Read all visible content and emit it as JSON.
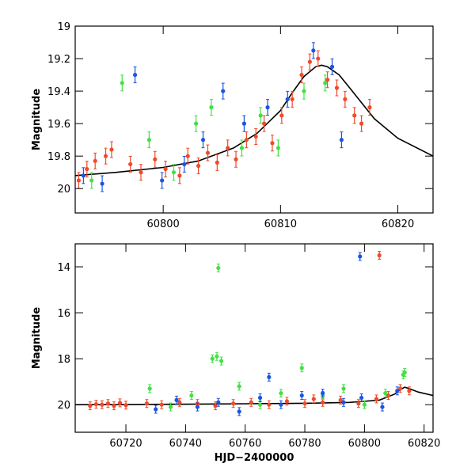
{
  "chart_data": [
    {
      "type": "scatter",
      "title": "",
      "xlabel": "",
      "ylabel": "Magnitude",
      "xlim": [
        60792.5,
        60823
      ],
      "ylim": [
        20.15,
        19.0
      ],
      "y_inverted": true,
      "grid": false,
      "x_ticks": [
        "60800",
        "60810",
        "60820"
      ],
      "y_ticks": [
        "19",
        "19.2",
        "19.4",
        "19.6",
        "19.8",
        "20"
      ],
      "colors": {
        "red": "#f04a2a",
        "green": "#44e044",
        "blue": "#1a55e0",
        "model": "#000000"
      },
      "model_curve": {
        "x": [
          60792.5,
          60796,
          60800,
          60803,
          60806,
          60808,
          60810,
          60811,
          60812,
          60813,
          60813.5,
          60814,
          60815,
          60816,
          60817,
          60818,
          60820,
          60823
        ],
        "y": [
          19.92,
          19.9,
          19.87,
          19.83,
          19.75,
          19.66,
          19.52,
          19.41,
          19.31,
          19.25,
          19.24,
          19.25,
          19.3,
          19.39,
          19.48,
          19.57,
          19.69,
          19.8
        ]
      },
      "series": [
        {
          "color": "red",
          "x": [
            60792.8,
            60793.5,
            60794.2,
            60795.1,
            60795.6,
            60797.2,
            60798.1,
            60799.3,
            60800.2,
            60801.4,
            60802.1,
            60803.0,
            60803.8,
            60804.6,
            60805.5,
            60806.2,
            60807.1,
            60807.9,
            60808.6,
            60809.3,
            60810.1,
            60811.0,
            60811.8,
            60812.5,
            60813.2,
            60814.0,
            60814.8,
            60815.5,
            60816.3,
            60816.9,
            60817.6
          ],
          "y": [
            19.95,
            19.88,
            19.83,
            19.8,
            19.76,
            19.85,
            19.9,
            19.82,
            19.88,
            19.92,
            19.8,
            19.86,
            19.78,
            19.84,
            19.75,
            19.82,
            19.7,
            19.68,
            19.6,
            19.72,
            19.55,
            19.45,
            19.3,
            19.22,
            19.2,
            19.33,
            19.38,
            19.45,
            19.55,
            19.6,
            19.5
          ]
        },
        {
          "color": "green",
          "x": [
            60793.9,
            60796.5,
            60798.8,
            60800.9,
            60802.8,
            60804.1,
            60806.7,
            60808.3,
            60809.8,
            60812.0,
            60813.8
          ],
          "y": [
            19.95,
            19.35,
            19.7,
            19.9,
            19.6,
            19.5,
            19.75,
            19.55,
            19.75,
            19.4,
            19.35
          ]
        },
        {
          "color": "blue",
          "x": [
            60793.2,
            60794.8,
            60797.6,
            60799.9,
            60801.8,
            60803.4,
            60805.1,
            60806.9,
            60808.9,
            60810.6,
            60812.8,
            60814.4,
            60815.2
          ],
          "y": [
            19.92,
            19.97,
            19.3,
            19.95,
            19.85,
            19.7,
            19.4,
            19.6,
            19.5,
            19.45,
            19.15,
            19.25,
            19.7
          ]
        }
      ]
    },
    {
      "type": "scatter",
      "title": "",
      "xlabel": "HJD−2400000",
      "ylabel": "Magnitude",
      "xlim": [
        60703,
        60823
      ],
      "ylim": [
        21.2,
        13.0
      ],
      "y_inverted": true,
      "grid": false,
      "x_ticks": [
        "60720",
        "60740",
        "60760",
        "60780",
        "60800",
        "60820"
      ],
      "y_ticks": [
        "14",
        "16",
        "18",
        "20"
      ],
      "colors": {
        "red": "#f04a2a",
        "green": "#44e044",
        "blue": "#1a55e0",
        "model": "#000000"
      },
      "model_curve": {
        "x": [
          60703,
          60720,
          60740,
          60760,
          60780,
          60795,
          60805,
          60810,
          60812,
          60813.5,
          60815,
          60818,
          60823
        ],
        "y": [
          20.0,
          19.99,
          19.98,
          19.96,
          19.94,
          19.9,
          19.8,
          19.55,
          19.35,
          19.24,
          19.3,
          19.45,
          19.6
        ]
      },
      "series": [
        {
          "color": "red",
          "x": [
            60708,
            60710,
            60712,
            60714,
            60716,
            60718,
            60720,
            60727,
            60732,
            60738,
            60744,
            60750,
            60756,
            60762,
            60768,
            60774,
            60780,
            60786,
            60792,
            60798,
            60804,
            60808,
            60812,
            60815,
            60783,
            60805
          ],
          "y": [
            20.05,
            19.98,
            20.0,
            19.95,
            20.05,
            19.92,
            20.02,
            19.95,
            20.0,
            19.9,
            19.95,
            20.05,
            19.95,
            19.9,
            20.0,
            19.85,
            19.95,
            19.9,
            19.8,
            19.95,
            19.75,
            19.6,
            19.3,
            19.4,
            19.75,
            13.5
          ]
        },
        {
          "color": "green",
          "x": [
            60728,
            60735,
            60742,
            60749,
            60750.5,
            60752,
            60758,
            60765,
            60772,
            60779,
            60786,
            60793,
            60800,
            60807,
            60813,
            60751,
            60813.5
          ],
          "y": [
            19.3,
            20.1,
            19.6,
            18.0,
            17.9,
            18.1,
            19.2,
            20.0,
            19.5,
            18.4,
            19.6,
            19.3,
            20.0,
            19.5,
            18.7,
            14.05,
            18.6
          ]
        },
        {
          "color": "blue",
          "x": [
            60730,
            60737,
            60744,
            60751,
            60758,
            60765,
            60772,
            60779,
            60786,
            60793,
            60799,
            60806,
            60811,
            60798.5,
            60768
          ],
          "y": [
            20.2,
            19.8,
            20.1,
            19.9,
            20.3,
            19.7,
            20.0,
            19.6,
            19.5,
            19.9,
            19.7,
            20.1,
            19.4,
            13.55,
            18.8
          ]
        }
      ]
    }
  ]
}
